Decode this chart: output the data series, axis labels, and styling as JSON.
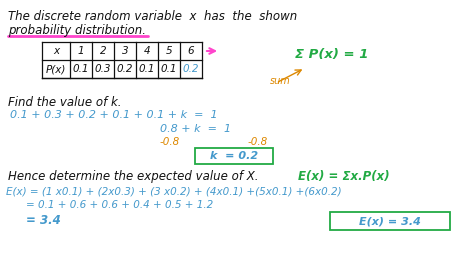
{
  "bg_color": "#ffffff",
  "color_blue": "#4499cc",
  "color_green": "#22aa44",
  "color_orange": "#dd8800",
  "color_pink": "#ff44cc",
  "color_dark": "#111111",
  "headers": [
    "x",
    "1",
    "2",
    "3",
    "4",
    "5",
    "6"
  ],
  "row2": [
    "P(x)",
    "0.1",
    "0.3",
    "0.2",
    "0.1",
    "0.1",
    "0.2"
  ],
  "sum_label": "Σ P(x) = 1",
  "sum_sub": "sum",
  "find_k": "Find the value of k.",
  "eq1": "0.1 + 0.3 + 0.2 + 0.1 + 0.1 + k  =  1",
  "eq2": "0.8 + k  =  1",
  "neg1": "-0.8",
  "neg2": "-0.8",
  "kbox": "k  = 0.2",
  "hence": "Hence determine the expected value of X.",
  "ex_rhs": "E(x) = Σx.P(x)",
  "ex_line1": "E(x) = (1 x0.1) + (2x0.3) + (3 x0.2) + (4x0.1) +(5x0.1) +(6x0.2)",
  "ex_line2": "= 0.1 + 0.6 + 0.6 + 0.4 + 0.5 + 1.2",
  "ex_line3": "= 3.4",
  "ex_box": "E(x) = 3.4"
}
